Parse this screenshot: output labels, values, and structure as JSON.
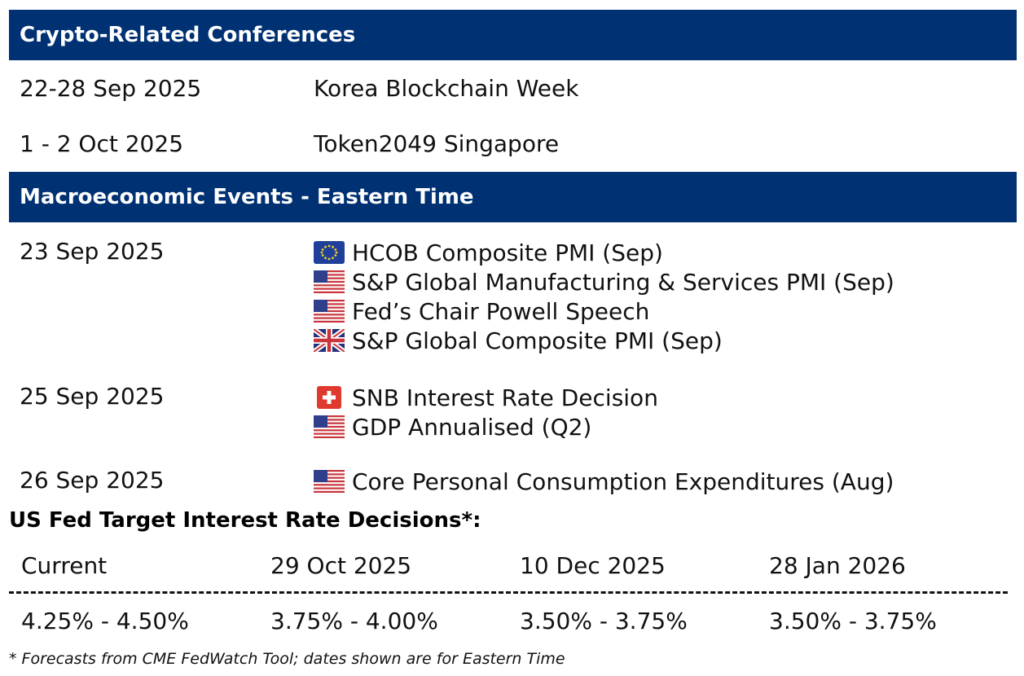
{
  "conferences": {
    "header": "Crypto-Related Conferences",
    "rows": [
      {
        "date": "22-28 Sep 2025",
        "event": "Korea Blockchain Week"
      },
      {
        "date": "1 - 2 Oct 2025",
        "event": "Token2049 Singapore"
      }
    ]
  },
  "macro": {
    "header": "Macroeconomic Events - Eastern Time",
    "groups": [
      {
        "date": "23 Sep 2025",
        "events": [
          {
            "flag": "eu-flag-icon",
            "label": "HCOB Composite PMI (Sep)"
          },
          {
            "flag": "us-flag-icon",
            "label": "S&P Global Manufacturing & Services PMI (Sep)"
          },
          {
            "flag": "us-flag-icon",
            "label": "Fed’s Chair Powell Speech"
          },
          {
            "flag": "uk-flag-icon",
            "label": "S&P Global Composite PMI (Sep)"
          }
        ]
      },
      {
        "date": "25 Sep 2025",
        "events": [
          {
            "flag": "ch-flag-icon",
            "label": "SNB Interest Rate Decision"
          },
          {
            "flag": "us-flag-icon",
            "label": "GDP Annualised (Q2)"
          }
        ]
      },
      {
        "date": "26 Sep 2025",
        "events": [
          {
            "flag": "us-flag-icon",
            "label": "Core Personal Consumption Expenditures (Aug)"
          }
        ]
      }
    ]
  },
  "fed": {
    "title": "US Fed Target Interest Rate Decisions*:",
    "headers": [
      "Current",
      "29 Oct 2025",
      "10 Dec 2025",
      "28 Jan 2026"
    ],
    "rates": [
      "4.25% - 4.50%",
      "3.75% - 4.00%",
      "3.50% - 3.75%",
      "3.50% - 3.75%"
    ]
  },
  "footnote": "* Forecasts from CME FedWatch Tool; dates shown are for Eastern Time",
  "colors": {
    "header_bg": "#003173",
    "header_text": "#ffffff"
  }
}
